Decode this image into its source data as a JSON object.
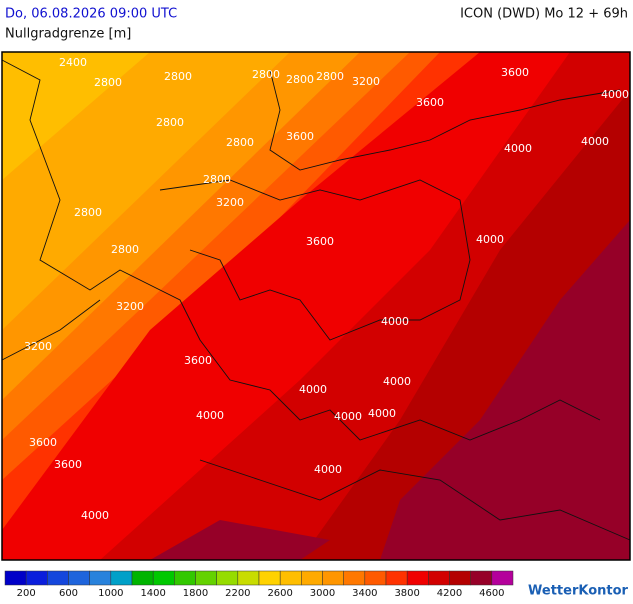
{
  "header": {
    "datetime": "Do, 06.08.2026 09:00 UTC",
    "model": "ICON (DWD) Mo 12 + 69h",
    "title": "Nullgradgrenze [m]"
  },
  "contour_labels": [
    "2400",
    "2800",
    "2800",
    "2800",
    "2800",
    "2800",
    "3200",
    "2800",
    "2800",
    "3600",
    "3200",
    "2800",
    "2800",
    "2800",
    "3600",
    "3200",
    "3200",
    "3600",
    "3600",
    "3600",
    "4000",
    "4000",
    "4000",
    "4000",
    "4000",
    "4000",
    "4000",
    "4000",
    "4000",
    "4000",
    "3600",
    "3600",
    "4000",
    "4000"
  ],
  "colorbar": {
    "colors": [
      "#0000c8",
      "#0a1edc",
      "#1446dc",
      "#1e64dc",
      "#2882dc",
      "#00a0c8",
      "#00b400",
      "#00c800",
      "#32c800",
      "#64d200",
      "#96dc00",
      "#c8dc00",
      "#ffd200",
      "#ffbe00",
      "#ffaa00",
      "#ff9600",
      "#ff7800",
      "#ff5a00",
      "#ff3200",
      "#f00000",
      "#d20000",
      "#b40000",
      "#960028",
      "#b4009b"
    ],
    "labels": [
      "200",
      "600",
      "1000",
      "1400",
      "1800",
      "2200",
      "2600",
      "3000",
      "3400",
      "3800",
      "4200",
      "4600"
    ]
  },
  "logo": "WetterKontor"
}
